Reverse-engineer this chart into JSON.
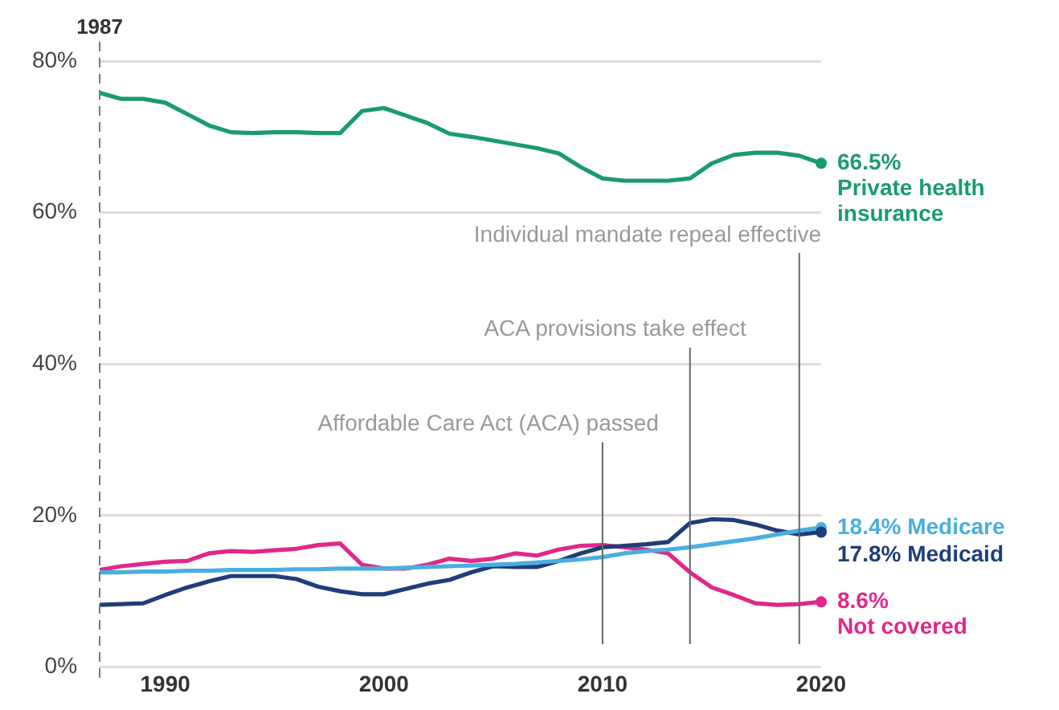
{
  "chart_data": {
    "type": "line",
    "x": [
      1987,
      1988,
      1989,
      1990,
      1991,
      1992,
      1993,
      1994,
      1995,
      1996,
      1997,
      1998,
      1999,
      2000,
      2001,
      2002,
      2003,
      2004,
      2005,
      2006,
      2007,
      2008,
      2009,
      2010,
      2011,
      2012,
      2013,
      2014,
      2015,
      2016,
      2017,
      2018,
      2019,
      2020
    ],
    "series": [
      {
        "name": "Private health insurance",
        "color": "#1a9a74",
        "values": [
          75.8,
          75,
          75,
          74.5,
          73,
          71.5,
          70.6,
          70.5,
          70.6,
          70.6,
          70.5,
          70.5,
          73.4,
          73.8,
          72.8,
          71.8,
          70.4,
          70,
          69.5,
          69,
          68.5,
          67.8,
          66,
          64.5,
          64.2,
          64.2,
          64.2,
          64.5,
          66.5,
          67.6,
          67.9,
          67.9,
          67.5,
          66.5
        ],
        "value_labels": [
          null,
          null,
          null,
          null,
          null,
          null,
          null,
          null,
          null,
          null,
          null,
          null,
          null,
          null,
          null,
          null,
          null,
          null,
          null,
          null,
          null,
          null,
          null,
          null,
          null,
          null,
          null,
          null,
          null,
          null,
          null,
          null,
          null,
          "66.5%"
        ]
      },
      {
        "name": "Medicare",
        "color": "#4aaee0",
        "values": [
          12.5,
          12.5,
          12.6,
          12.6,
          12.7,
          12.7,
          12.8,
          12.8,
          12.8,
          12.9,
          12.9,
          13,
          13,
          13,
          13.1,
          13.2,
          13.3,
          13.4,
          13.5,
          13.6,
          13.8,
          14,
          14.2,
          14.5,
          15,
          15.3,
          15.5,
          15.8,
          16.2,
          16.6,
          17,
          17.5,
          18,
          18.4
        ],
        "value_labels": [
          null,
          null,
          null,
          null,
          null,
          null,
          null,
          null,
          null,
          null,
          null,
          null,
          null,
          null,
          null,
          null,
          null,
          null,
          null,
          null,
          null,
          null,
          null,
          null,
          null,
          null,
          null,
          null,
          null,
          null,
          null,
          null,
          null,
          "18.4%"
        ]
      },
      {
        "name": "Medicaid",
        "color": "#1f3d7a",
        "values": [
          8.2,
          8.3,
          8.4,
          9.5,
          10.5,
          11.3,
          12,
          12,
          12,
          11.6,
          10.6,
          10,
          9.6,
          9.6,
          10.3,
          11,
          11.5,
          12.5,
          13.3,
          13.2,
          13.2,
          14,
          15,
          15.8,
          16,
          16.2,
          16.5,
          19,
          19.5,
          19.4,
          18.8,
          18,
          17.5,
          17.8
        ],
        "value_labels": [
          null,
          null,
          null,
          null,
          null,
          null,
          null,
          null,
          null,
          null,
          null,
          null,
          null,
          null,
          null,
          null,
          null,
          null,
          null,
          null,
          null,
          null,
          null,
          null,
          null,
          null,
          null,
          null,
          null,
          null,
          null,
          null,
          null,
          "17.8%"
        ]
      },
      {
        "name": "Not covered",
        "color": "#e0288a",
        "values": [
          12.8,
          13.3,
          13.6,
          13.9,
          14,
          15,
          15.3,
          15.2,
          15.4,
          15.6,
          16.1,
          16.3,
          13.5,
          13,
          13,
          13.5,
          14.3,
          14,
          14.3,
          15,
          14.7,
          15.5,
          16,
          16.1,
          15.8,
          15.5,
          15,
          12.5,
          10.5,
          9.5,
          8.4,
          8.2,
          8.3,
          8.6
        ],
        "value_labels": [
          null,
          null,
          null,
          null,
          null,
          null,
          null,
          null,
          null,
          null,
          null,
          null,
          null,
          null,
          null,
          null,
          null,
          null,
          null,
          null,
          null,
          null,
          null,
          null,
          null,
          null,
          null,
          null,
          null,
          null,
          null,
          null,
          null,
          "8.6%"
        ]
      }
    ],
    "xlim": [
      1987,
      2020
    ],
    "xticks": [
      1990,
      2000,
      2010,
      2020
    ],
    "ylim": [
      0,
      80
    ],
    "yticks": [
      {
        "value": 0,
        "label": "0%"
      },
      {
        "value": 20,
        "label": "20%"
      },
      {
        "value": 40,
        "label": "40%"
      },
      {
        "value": 60,
        "label": "60%"
      },
      {
        "value": 80,
        "label": "80%"
      }
    ],
    "ref_lines": [
      {
        "axis": "x",
        "value": 1987,
        "label": "1987",
        "line_style": "dashed",
        "color": "#777777"
      },
      {
        "axis": "x",
        "value": 2010,
        "label": "Affordable Care Act (ACA) passed",
        "color": "#666666"
      },
      {
        "axis": "x",
        "value": 2014,
        "label": "ACA provisions take effect",
        "color": "#666666"
      },
      {
        "axis": "x",
        "value": 2019,
        "label": "Individual mandate repeal effective",
        "color": "#666666"
      }
    ],
    "grid": "y",
    "legend": false,
    "marker": "none",
    "line_style": "solid"
  }
}
